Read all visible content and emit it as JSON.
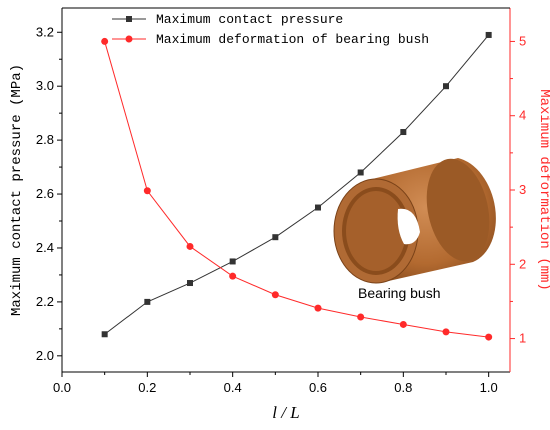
{
  "chart_data": {
    "type": "line",
    "xlabel": "l / L",
    "x": [
      0.1,
      0.2,
      0.3,
      0.4,
      0.5,
      0.6,
      0.7,
      0.8,
      0.9,
      1.0
    ],
    "xlim": [
      0.0,
      1.05
    ],
    "xticks": [
      "0.0",
      "0.2",
      "0.4",
      "0.6",
      "0.8",
      "1.0"
    ],
    "ylabel_left": "Maximum contact pressure (MPa)",
    "ylim_left": [
      1.94,
      3.29
    ],
    "yticks_left": [
      "2.0",
      "2.2",
      "2.4",
      "2.6",
      "2.8",
      "3.0",
      "3.2"
    ],
    "ylabel_right": "Maximum deformation (mm)",
    "ylim_right": [
      0.55,
      5.45
    ],
    "yticks_right": [
      "1",
      "2",
      "3",
      "4",
      "5"
    ],
    "series": [
      {
        "name": "Maximum contact pressure",
        "axis": "left",
        "color": "#333333",
        "marker": "square",
        "values": [
          2.08,
          2.2,
          2.27,
          2.35,
          2.44,
          2.55,
          2.68,
          2.83,
          3.0,
          3.19
        ]
      },
      {
        "name": "Maximum deformation of bearing bush",
        "axis": "right",
        "color": "#ff2a2a",
        "marker": "circle",
        "values": [
          5.0,
          2.99,
          2.24,
          1.84,
          1.59,
          1.41,
          1.29,
          1.19,
          1.09,
          1.02
        ]
      }
    ],
    "legend_position": "top-left",
    "grid": false,
    "annotation": "Bearing bush"
  }
}
